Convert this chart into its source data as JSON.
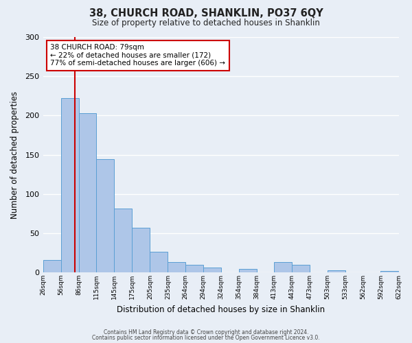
{
  "title": "38, CHURCH ROAD, SHANKLIN, PO37 6QY",
  "subtitle": "Size of property relative to detached houses in Shanklin",
  "xlabel": "Distribution of detached houses by size in Shanklin",
  "ylabel": "Number of detached properties",
  "bar_left_edges": [
    26,
    56,
    86,
    115,
    145,
    175,
    205,
    235,
    264,
    294,
    324,
    354,
    384,
    413,
    443,
    473,
    503,
    533,
    562,
    592
  ],
  "bar_heights": [
    16,
    222,
    203,
    144,
    81,
    57,
    26,
    13,
    10,
    6,
    0,
    4,
    0,
    13,
    10,
    0,
    3,
    0,
    0,
    2
  ],
  "bar_widths": [
    30,
    30,
    29,
    30,
    30,
    30,
    30,
    29,
    30,
    30,
    30,
    30,
    29,
    30,
    30,
    30,
    30,
    29,
    30,
    30
  ],
  "tick_labels": [
    "26sqm",
    "56sqm",
    "86sqm",
    "115sqm",
    "145sqm",
    "175sqm",
    "205sqm",
    "235sqm",
    "264sqm",
    "294sqm",
    "324sqm",
    "354sqm",
    "384sqm",
    "413sqm",
    "443sqm",
    "473sqm",
    "503sqm",
    "533sqm",
    "562sqm",
    "592sqm",
    "622sqm"
  ],
  "ylim": [
    0,
    300
  ],
  "yticks": [
    0,
    50,
    100,
    150,
    200,
    250,
    300
  ],
  "bar_color": "#aec6e8",
  "bar_edge_color": "#5a9fd4",
  "bg_color": "#e8eef6",
  "grid_color": "#ffffff",
  "vline_x": 79,
  "vline_color": "#cc0000",
  "annotation_text": "38 CHURCH ROAD: 79sqm\n← 22% of detached houses are smaller (172)\n77% of semi-detached houses are larger (606) →",
  "annotation_box_color": "#ffffff",
  "annotation_box_edge": "#cc0000",
  "footer1": "Contains HM Land Registry data © Crown copyright and database right 2024.",
  "footer2": "Contains public sector information licensed under the Open Government Licence v3.0."
}
